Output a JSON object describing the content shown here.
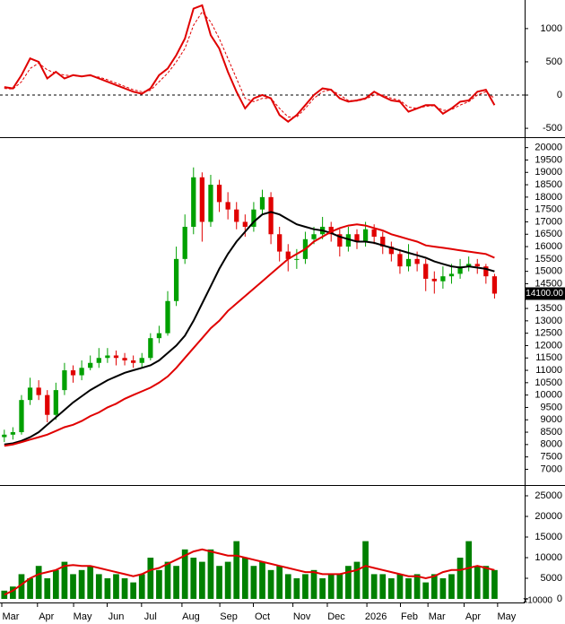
{
  "chart_data": [
    {
      "type": "line",
      "xlim": [
        -0.5,
        60.5
      ],
      "ylim": [
        -620,
        1430
      ],
      "yticks": [
        -500,
        0,
        500,
        1000
      ],
      "zero_line": "dashed",
      "series": [
        {
          "color": "#e00000",
          "style": "solid",
          "values": [
            120,
            100,
            300,
            550,
            500,
            250,
            350,
            250,
            300,
            280,
            300,
            250,
            200,
            150,
            100,
            50,
            20,
            100,
            300,
            400,
            600,
            850,
            1300,
            1350,
            900,
            700,
            350,
            50,
            -200,
            -50,
            0,
            -50,
            -300,
            -400,
            -300,
            -150,
            0,
            100,
            80,
            -50,
            -100,
            -80,
            -50,
            50,
            -20,
            -80,
            -100,
            -250,
            -200,
            -150,
            -150,
            -280,
            -200,
            -100,
            -80,
            50,
            80,
            -150
          ]
        },
        {
          "color": "#e00000",
          "style": "dashed",
          "values": [
            100,
            90,
            200,
            400,
            480,
            380,
            330,
            300,
            290,
            285,
            290,
            270,
            230,
            180,
            130,
            80,
            50,
            70,
            200,
            330,
            500,
            700,
            1050,
            1250,
            1100,
            850,
            550,
            250,
            -50,
            -100,
            -50,
            -50,
            -200,
            -330,
            -330,
            -200,
            -50,
            50,
            80,
            0,
            -80,
            -90,
            -60,
            0,
            0,
            -50,
            -80,
            -180,
            -200,
            -170,
            -160,
            -230,
            -220,
            -150,
            -100,
            0,
            50,
            -50
          ]
        }
      ]
    },
    {
      "type": "candlestick",
      "xlim": [
        -0.5,
        60.5
      ],
      "ylim": [
        6400,
        20350
      ],
      "yticks": [
        7000,
        7500,
        8000,
        8500,
        9000,
        9500,
        10000,
        10500,
        11000,
        11500,
        12000,
        12500,
        13000,
        13500,
        14000,
        14500,
        15000,
        15500,
        16000,
        16500,
        17000,
        17500,
        18000,
        18500,
        19000,
        19500,
        20000
      ],
      "up_color": "#00a000",
      "down_color": "#e00000",
      "open": [
        8300,
        8400,
        8500,
        9800,
        10300,
        10000,
        9200,
        10200,
        11000,
        10800,
        11100,
        11300,
        11500,
        11600,
        11500,
        11400,
        11300,
        11500,
        12300,
        12500,
        13800,
        15500,
        16800,
        18800,
        17000,
        18500,
        17800,
        17500,
        17000,
        16800,
        17500,
        18000,
        16500,
        15800,
        15500,
        15500,
        16300,
        16500,
        16800,
        16500,
        16000,
        16500,
        16200,
        16700,
        16400,
        16000,
        15700,
        15200,
        15500,
        15300,
        14700,
        14600,
        14800,
        14900,
        15200,
        15300,
        15200,
        14800
      ],
      "high": [
        8600,
        8700,
        10000,
        10700,
        10600,
        10200,
        10500,
        11300,
        11200,
        11400,
        11600,
        11900,
        11900,
        11800,
        11700,
        11600,
        11700,
        12500,
        12800,
        14200,
        16000,
        17300,
        19200,
        19000,
        18900,
        18700,
        18200,
        17800,
        17300,
        17800,
        18300,
        18200,
        16800,
        16100,
        15900,
        16600,
        16800,
        17200,
        17000,
        16700,
        16800,
        16700,
        17000,
        16900,
        16600,
        16200,
        15900,
        16100,
        15800,
        15500,
        15000,
        15200,
        15300,
        15500,
        15600,
        15500,
        15300,
        14900
      ],
      "low": [
        8100,
        8200,
        8400,
        9600,
        9800,
        8900,
        9000,
        10000,
        10500,
        10600,
        11000,
        11100,
        11300,
        11200,
        11200,
        11100,
        11100,
        11400,
        12100,
        12400,
        13600,
        15300,
        16500,
        16200,
        16800,
        17400,
        17100,
        16700,
        16400,
        16600,
        17300,
        16100,
        15400,
        15000,
        15100,
        15300,
        16100,
        16300,
        16200,
        15600,
        15800,
        15900,
        16000,
        16100,
        15700,
        15400,
        14900,
        15000,
        15000,
        14200,
        14100,
        14300,
        14500,
        14700,
        15000,
        14900,
        14500,
        13900
      ],
      "close": [
        8400,
        8500,
        9800,
        10300,
        10000,
        9200,
        10200,
        11000,
        10800,
        11100,
        11300,
        11500,
        11600,
        11500,
        11400,
        11300,
        11500,
        12300,
        12500,
        13800,
        15500,
        16800,
        18800,
        17000,
        18500,
        17800,
        17500,
        17000,
        16800,
        17500,
        18000,
        16500,
        15800,
        15500,
        15500,
        16300,
        16500,
        16800,
        16500,
        16000,
        16500,
        16200,
        16700,
        16400,
        16000,
        15700,
        15200,
        15500,
        15300,
        14700,
        14600,
        14800,
        14900,
        15200,
        15300,
        15200,
        14800,
        14100
      ],
      "last_price": {
        "value": 14100,
        "label": "14100.00"
      },
      "series": [
        {
          "color": "#000000",
          "values": [
            8000,
            8050,
            8150,
            8300,
            8500,
            8800,
            9100,
            9400,
            9700,
            9950,
            10200,
            10400,
            10600,
            10750,
            10900,
            11000,
            11100,
            11200,
            11400,
            11700,
            12000,
            12400,
            13000,
            13700,
            14400,
            15100,
            15700,
            16200,
            16600,
            17000,
            17300,
            17400,
            17300,
            17100,
            16900,
            16800,
            16700,
            16650,
            16550,
            16400,
            16300,
            16200,
            16200,
            16150,
            16050,
            15950,
            15850,
            15750,
            15650,
            15550,
            15400,
            15300,
            15200,
            15150,
            15200,
            15150,
            15100,
            15000
          ]
        },
        {
          "color": "#e00000",
          "values": [
            7950,
            8000,
            8100,
            8200,
            8300,
            8400,
            8550,
            8700,
            8800,
            8950,
            9150,
            9300,
            9500,
            9650,
            9850,
            10000,
            10150,
            10300,
            10500,
            10750,
            11100,
            11500,
            11900,
            12300,
            12700,
            13000,
            13400,
            13700,
            14000,
            14300,
            14600,
            14900,
            15200,
            15500,
            15700,
            15900,
            16200,
            16400,
            16600,
            16750,
            16850,
            16900,
            16850,
            16750,
            16650,
            16500,
            16400,
            16300,
            16200,
            16050,
            16000,
            15950,
            15900,
            15850,
            15800,
            15750,
            15700,
            15550
          ]
        }
      ]
    },
    {
      "type": "bar",
      "xlim": [
        -0.5,
        60.5
      ],
      "ylim": [
        -430,
        27170
      ],
      "yticks": [
        0,
        5000,
        10000,
        15000,
        20000,
        25000
      ],
      "unit_label": "x10000",
      "color": "#008000",
      "values": [
        2000,
        3000,
        6000,
        5000,
        8000,
        5000,
        7000,
        9000,
        6000,
        7000,
        8000,
        6000,
        5000,
        6000,
        5000,
        4000,
        6000,
        10000,
        7000,
        9000,
        8000,
        12000,
        10000,
        9000,
        12000,
        8000,
        9000,
        14000,
        10000,
        8000,
        9000,
        7000,
        8000,
        6000,
        5000,
        6000,
        7000,
        5000,
        6000,
        6000,
        8000,
        9000,
        14000,
        6000,
        6000,
        5000,
        6000,
        5000,
        6000,
        4000,
        6000,
        5000,
        6000,
        10000,
        14000,
        8000,
        8000,
        7000
      ],
      "series": [
        {
          "color": "#e00000",
          "values": [
            1000,
            2000,
            3500,
            5000,
            6000,
            6500,
            7000,
            8000,
            8200,
            8000,
            8000,
            7500,
            7000,
            6500,
            6000,
            5500,
            6000,
            7000,
            7500,
            8500,
            9500,
            10500,
            11500,
            12000,
            11500,
            11000,
            10500,
            10500,
            10000,
            9500,
            9000,
            8500,
            8000,
            7500,
            7000,
            6500,
            6500,
            6000,
            6000,
            6000,
            6500,
            7000,
            8000,
            7500,
            7000,
            6500,
            6000,
            5500,
            5500,
            5000,
            5500,
            6500,
            7000,
            7000,
            7500,
            8000,
            7500,
            7000
          ]
        }
      ],
      "xticks": [
        {
          "value": 0.75,
          "label": "Mar"
        },
        {
          "value": 4.9,
          "label": "Apr"
        },
        {
          "value": 9.1,
          "label": "May"
        },
        {
          "value": 13,
          "label": "Jun"
        },
        {
          "value": 17,
          "label": "Jul"
        },
        {
          "value": 21.7,
          "label": "Aug"
        },
        {
          "value": 26.1,
          "label": "Sep"
        },
        {
          "value": 30,
          "label": "Oct"
        },
        {
          "value": 34.6,
          "label": "Nov"
        },
        {
          "value": 38.6,
          "label": "Dec"
        },
        {
          "value": 43.2,
          "label": "2026"
        },
        {
          "value": 47.1,
          "label": "Feb"
        },
        {
          "value": 50.3,
          "label": "Mar"
        },
        {
          "value": 54.5,
          "label": "Apr"
        },
        {
          "value": 58.4,
          "label": "May"
        }
      ]
    }
  ]
}
